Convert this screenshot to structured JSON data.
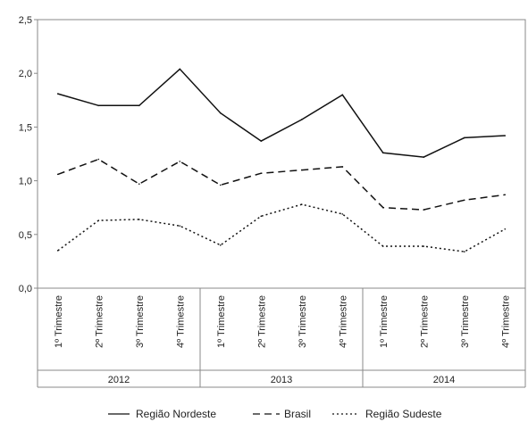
{
  "chart_data": {
    "type": "line",
    "ylim": [
      0,
      2.5
    ],
    "yticks": [
      "0,0",
      "0,5",
      "1,0",
      "1,5",
      "2,0",
      "2,5"
    ],
    "ytick_values": [
      0,
      0.5,
      1.0,
      1.5,
      2.0,
      2.5
    ],
    "categories": [
      "1º Trimestre",
      "2º Trimestre",
      "3º Trimestre",
      "4º Trimestre",
      "1º Trimestre",
      "2º Trimestre",
      "3º Trimestre",
      "4º Trimestre",
      "1º Trimestre",
      "2º Trimestre",
      "3º Trimestre",
      "4º Trimestre"
    ],
    "groups": [
      {
        "label": "2012",
        "count": 4
      },
      {
        "label": "2013",
        "count": 4
      },
      {
        "label": "2014",
        "count": 4
      }
    ],
    "series": [
      {
        "name": "Região Nordeste",
        "style": "solid",
        "values": [
          1.81,
          1.7,
          1.7,
          2.04,
          1.63,
          1.37,
          1.57,
          1.8,
          1.26,
          1.22,
          1.4,
          1.42
        ]
      },
      {
        "name": "Brasil",
        "style": "dashed",
        "values": [
          1.06,
          1.2,
          0.97,
          1.18,
          0.96,
          1.07,
          1.1,
          1.13,
          0.75,
          0.73,
          0.82,
          0.87
        ]
      },
      {
        "name": "Região Sudeste",
        "style": "dotted",
        "values": [
          0.35,
          0.63,
          0.64,
          0.58,
          0.4,
          0.67,
          0.78,
          0.69,
          0.39,
          0.39,
          0.34,
          0.55
        ]
      }
    ],
    "legend_position": "bottom",
    "grid": false
  },
  "colors": {
    "line": "#111111",
    "axis": "#888888",
    "text": "#222222"
  }
}
